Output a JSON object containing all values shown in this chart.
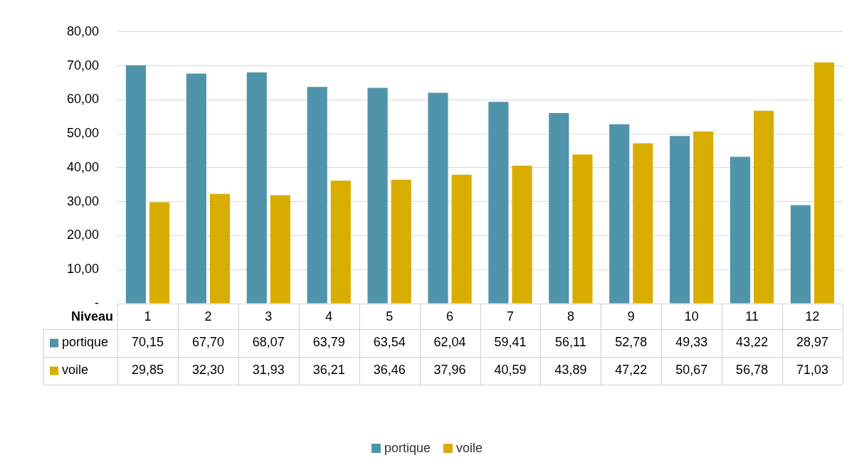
{
  "chart_data": {
    "type": "bar",
    "xlabel": "Niveau",
    "categories": [
      "1",
      "2",
      "3",
      "4",
      "5",
      "6",
      "7",
      "8",
      "9",
      "10",
      "11",
      "12"
    ],
    "series": [
      {
        "name": "portique",
        "color": "#4f94aa",
        "values": [
          70.15,
          67.7,
          68.07,
          63.79,
          63.54,
          62.04,
          59.41,
          56.11,
          52.78,
          49.33,
          43.22,
          28.97
        ],
        "value_labels": [
          "70,15",
          "67,70",
          "68,07",
          "63,79",
          "63,54",
          "62,04",
          "59,41",
          "56,11",
          "52,78",
          "49,33",
          "43,22",
          "28,97"
        ]
      },
      {
        "name": "voile",
        "color": "#d9ad00",
        "values": [
          29.85,
          32.3,
          31.93,
          36.21,
          36.46,
          37.96,
          40.59,
          43.89,
          47.22,
          50.67,
          56.78,
          71.03
        ],
        "value_labels": [
          "29,85",
          "32,30",
          "31,93",
          "36,21",
          "36,46",
          "37,96",
          "40,59",
          "43,89",
          "47,22",
          "50,67",
          "56,78",
          "71,03"
        ]
      }
    ],
    "ylim": [
      0,
      80
    ],
    "yticks": [
      {
        "value": 0,
        "label": "-"
      },
      {
        "value": 10,
        "label": "10,00"
      },
      {
        "value": 20,
        "label": "20,00"
      },
      {
        "value": 30,
        "label": "30,00"
      },
      {
        "value": 40,
        "label": "40,00"
      },
      {
        "value": 50,
        "label": "50,00"
      },
      {
        "value": 60,
        "label": "60,00"
      },
      {
        "value": 70,
        "label": "70,00"
      },
      {
        "value": 80,
        "label": "80,00"
      }
    ],
    "grid": "y",
    "legend": "bottom"
  }
}
